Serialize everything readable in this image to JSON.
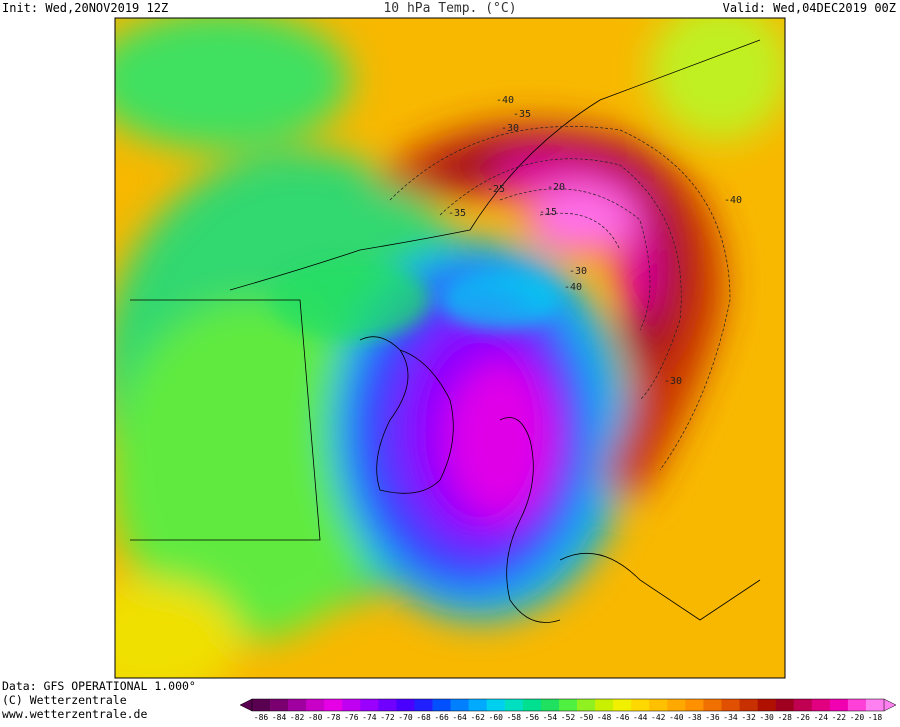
{
  "header": {
    "init": "Init: Wed,20NOV2019 12Z",
    "title": "10 hPa Temp. (°C)",
    "valid": "Valid: Wed,04DEC2019 00Z"
  },
  "footer": {
    "data": "Data: GFS OPERATIONAL 1.000°",
    "copyright": "(C) Wetterzentrale",
    "url": "www.wetterzentrale.de"
  },
  "colorbar": {
    "ticks": [
      -86,
      -84,
      -82,
      -80,
      -78,
      -76,
      -74,
      -72,
      -70,
      -68,
      -66,
      -64,
      -62,
      -60,
      -58,
      -56,
      -54,
      -52,
      -50,
      -48,
      -46,
      -44,
      -42,
      -40,
      -38,
      -36,
      -34,
      -32,
      -30,
      -28,
      -26,
      -24,
      -22,
      -20,
      -18
    ],
    "colors": [
      "#5a0050",
      "#7a0070",
      "#a000a0",
      "#c800c8",
      "#e600e6",
      "#c000f0",
      "#9a00ff",
      "#7000ff",
      "#4a00ff",
      "#2020ff",
      "#0050ff",
      "#0080ff",
      "#00aaff",
      "#00d0f0",
      "#00e0c0",
      "#00e090",
      "#20e060",
      "#50f040",
      "#90f020",
      "#c8f000",
      "#f0f000",
      "#ffd800",
      "#ffc000",
      "#ffa800",
      "#ff9000",
      "#f07000",
      "#e05000",
      "#c83000",
      "#b01000",
      "#a00020",
      "#c00050",
      "#e00080",
      "#f000b0",
      "#ff40d8",
      "#ff80f0"
    ]
  },
  "contour_labels": [
    -40,
    -35,
    -30,
    -25,
    -20,
    -15,
    -35,
    -30,
    -40,
    -40,
    -30
  ]
}
